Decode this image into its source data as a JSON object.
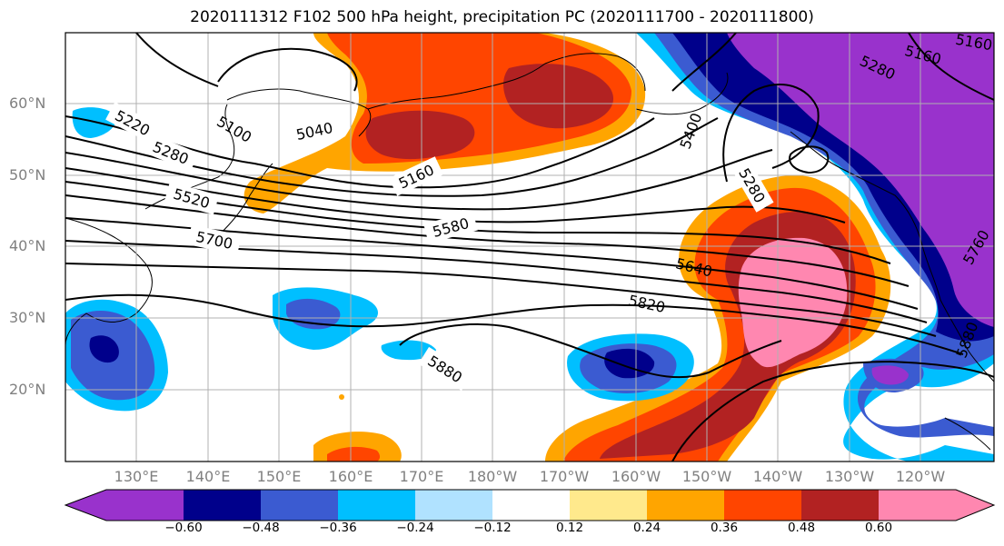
{
  "title": "2020111312 F102 500 hPa height, precipitation PC (2020111700 - 2020111800)",
  "lat_labels": [
    "60°N",
    "50°N",
    "40°N",
    "30°N",
    "20°N"
  ],
  "lon_labels": [
    "130°E",
    "140°E",
    "150°E",
    "160°E",
    "170°E",
    "180°W",
    "170°W",
    "160°W",
    "150°W",
    "140°W",
    "130°W",
    "120°W"
  ],
  "colorbar": {
    "ticks": [
      "−0.60",
      "−0.48",
      "−0.36",
      "−0.24",
      "−0.12",
      "0.12",
      "0.24",
      "0.36",
      "0.48",
      "0.60"
    ],
    "colors": [
      "#9932cc",
      "#00008b",
      "#3b5bd1",
      "#00bfff",
      "#b0e2ff",
      "#ffffff",
      "#ffe98c",
      "#ffa500",
      "#ff4500",
      "#b22222",
      "#ff87b0"
    ]
  },
  "contour_labels": [
    "5220",
    "5280",
    "5520",
    "5700",
    "5100",
    "5040",
    "5160",
    "5580",
    "5640",
    "5820",
    "5880",
    "5400",
    "5280",
    "5280",
    "5160",
    "5160",
    "5760",
    "5880"
  ],
  "colors": {
    "axis_label": "#808080",
    "grid": "#b0b0b0",
    "contour": "#000000"
  }
}
